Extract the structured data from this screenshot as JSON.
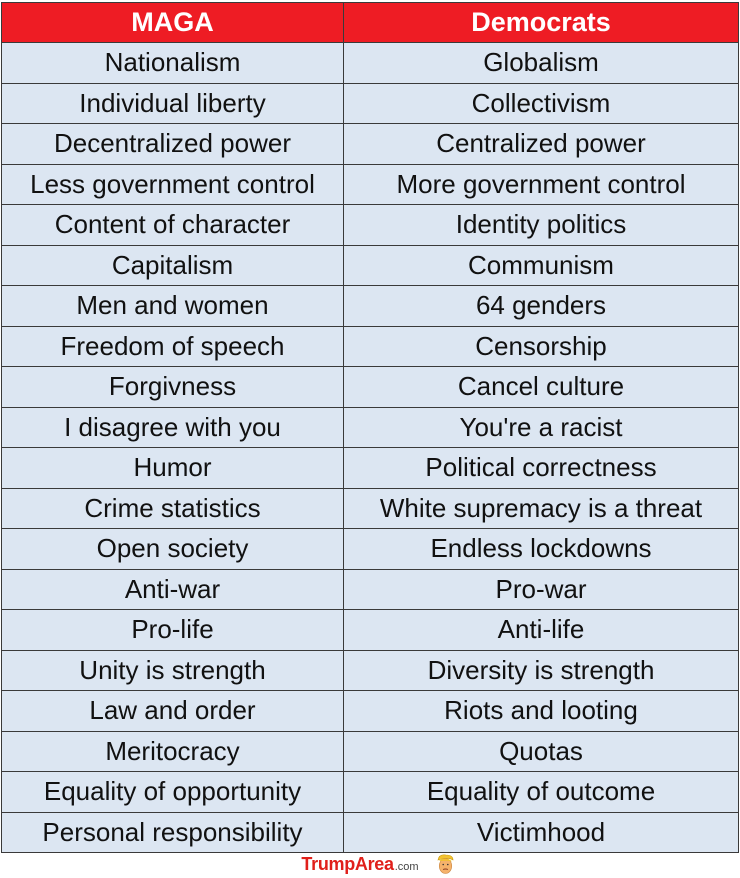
{
  "table": {
    "headers": [
      "MAGA",
      "Democrats"
    ],
    "rows": [
      [
        "Nationalism",
        "Globalism"
      ],
      [
        "Individual liberty",
        "Collectivism"
      ],
      [
        "Decentralized power",
        "Centralized power"
      ],
      [
        "Less government control",
        "More government control"
      ],
      [
        "Content of character",
        "Identity politics"
      ],
      [
        "Capitalism",
        "Communism"
      ],
      [
        "Men and women",
        "64 genders"
      ],
      [
        "Freedom of speech",
        "Censorship"
      ],
      [
        "Forgivness",
        "Cancel culture"
      ],
      [
        "I disagree with you",
        "You're a racist"
      ],
      [
        "Humor",
        "Political correctness"
      ],
      [
        "Crime statistics",
        "White supremacy is a threat"
      ],
      [
        "Open society",
        "Endless lockdowns"
      ],
      [
        "Anti-war",
        "Pro-war"
      ],
      [
        "Pro-life",
        "Anti-life"
      ],
      [
        "Unity is strength",
        "Diversity is strength"
      ],
      [
        "Law and order",
        "Riots and looting"
      ],
      [
        "Meritocracy",
        "Quotas"
      ],
      [
        "Equality of opportunity",
        "Equality of outcome"
      ],
      [
        "Personal responsibility",
        "Victimhood"
      ]
    ]
  },
  "footer": {
    "brand": "TrumpArea",
    "suffix": ".com",
    "logo_icon": "trump-face-icon"
  },
  "colors": {
    "header_bg": "#ee1c24",
    "cell_bg": "#dce6f2",
    "brand_red": "#e0201b"
  }
}
